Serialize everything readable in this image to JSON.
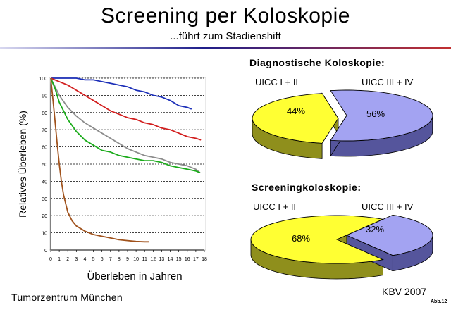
{
  "slide": {
    "title": "Screening per Koloskopie",
    "subtitle": "...führt zum Stadienshift",
    "footer_left": "Tumorzentrum München",
    "footer_right": "KBV 2007",
    "abb": "Abb.12"
  },
  "chart_data": [
    {
      "type": "line",
      "xlabel": "Überleben in Jahren",
      "ylabel": "Relatives Überleben (%)",
      "xlim": [
        0,
        18
      ],
      "ylim": [
        0,
        100
      ],
      "x_ticks": [
        "0",
        "1",
        "2",
        "3",
        "4",
        "5",
        "6",
        "7",
        "8",
        "9",
        "10",
        "11",
        "12",
        "13",
        "14",
        "15",
        "16",
        "17",
        "18"
      ],
      "y_ticks": [
        "0",
        "10",
        "20",
        "30",
        "40",
        "50",
        "60",
        "70",
        "80",
        "90",
        "100"
      ],
      "grid": "horizontal dashed",
      "series": [
        {
          "color": "#1c2fb8",
          "points": [
            [
              0,
              100
            ],
            [
              1,
              100
            ],
            [
              2,
              100
            ],
            [
              3,
              100
            ],
            [
              4,
              99
            ],
            [
              5,
              99
            ],
            [
              6,
              98
            ],
            [
              7,
              97
            ],
            [
              8,
              96
            ],
            [
              9,
              95
            ],
            [
              10,
              93
            ],
            [
              11,
              92
            ],
            [
              12,
              90
            ],
            [
              13,
              89
            ],
            [
              14,
              87
            ],
            [
              15,
              84
            ],
            [
              16,
              83
            ],
            [
              16.5,
              82
            ]
          ]
        },
        {
          "color": "#d21e1e",
          "points": [
            [
              0,
              100
            ],
            [
              1,
              98
            ],
            [
              2,
              96
            ],
            [
              3,
              93
            ],
            [
              4,
              90
            ],
            [
              5,
              87
            ],
            [
              6,
              84
            ],
            [
              7,
              81
            ],
            [
              8,
              79
            ],
            [
              9,
              77
            ],
            [
              10,
              76
            ],
            [
              11,
              74
            ],
            [
              12,
              73
            ],
            [
              13,
              71
            ],
            [
              14,
              70
            ],
            [
              15,
              68
            ],
            [
              16,
              66
            ],
            [
              17,
              65
            ],
            [
              17.6,
              64
            ]
          ]
        },
        {
          "color": "#8c8c8c",
          "points": [
            [
              0,
              100
            ],
            [
              0.5,
              95
            ],
            [
              1,
              90
            ],
            [
              2,
              83
            ],
            [
              3,
              78
            ],
            [
              4,
              74
            ],
            [
              5,
              71
            ],
            [
              6,
              68
            ],
            [
              7,
              65
            ],
            [
              8,
              62
            ],
            [
              9,
              59
            ],
            [
              10,
              57
            ],
            [
              11,
              55
            ],
            [
              12,
              54
            ],
            [
              13,
              53
            ],
            [
              14,
              51
            ],
            [
              15,
              50
            ],
            [
              16,
              49
            ],
            [
              17,
              47
            ],
            [
              17.5,
              45
            ]
          ]
        },
        {
          "color": "#1aab1a",
          "points": [
            [
              0,
              100
            ],
            [
              0.5,
              94
            ],
            [
              1,
              86
            ],
            [
              2,
              76
            ],
            [
              3,
              69
            ],
            [
              4,
              64
            ],
            [
              5,
              61
            ],
            [
              6,
              58
            ],
            [
              7,
              57
            ],
            [
              8,
              55
            ],
            [
              9,
              54
            ],
            [
              10,
              53
            ],
            [
              11,
              52
            ],
            [
              12,
              52
            ],
            [
              13,
              51
            ],
            [
              14,
              49
            ],
            [
              15,
              48
            ],
            [
              16,
              47
            ],
            [
              17,
              46
            ],
            [
              17.5,
              45
            ]
          ]
        },
        {
          "color": "#a0521c",
          "points": [
            [
              0,
              100
            ],
            [
              0.25,
              88
            ],
            [
              0.5,
              75
            ],
            [
              0.75,
              62
            ],
            [
              1,
              50
            ],
            [
              1.25,
              40
            ],
            [
              1.5,
              32
            ],
            [
              2,
              22
            ],
            [
              2.5,
              17
            ],
            [
              3,
              14
            ],
            [
              4,
              11
            ],
            [
              5,
              9
            ],
            [
              6,
              8
            ],
            [
              7,
              7
            ],
            [
              8,
              6
            ],
            [
              9,
              5.5
            ],
            [
              10,
              5
            ],
            [
              11,
              4.8
            ],
            [
              11.5,
              4.8
            ]
          ]
        }
      ]
    },
    {
      "type": "pie",
      "title": "Diagnostische Koloskopie:",
      "series_labels": [
        "UICC I + II",
        "UICC III + IV"
      ],
      "values": [
        44,
        56
      ],
      "value_labels": [
        "44%",
        "56%"
      ],
      "colors": {
        "stage_early": "#ffff33",
        "stage_early_side": "#8f8f1c",
        "stage_late": "#a3a3f2",
        "stage_late_side": "#55559c"
      }
    },
    {
      "type": "pie",
      "title": "Screeningkoloskopie:",
      "series_labels": [
        "UICC I + II",
        "UICC III + IV"
      ],
      "values": [
        68,
        32
      ],
      "value_labels": [
        "68%",
        "32%"
      ],
      "colors": {
        "stage_early": "#ffff33",
        "stage_early_side": "#8f8f1c",
        "stage_late": "#a3a3f2",
        "stage_late_side": "#55559c"
      }
    }
  ]
}
